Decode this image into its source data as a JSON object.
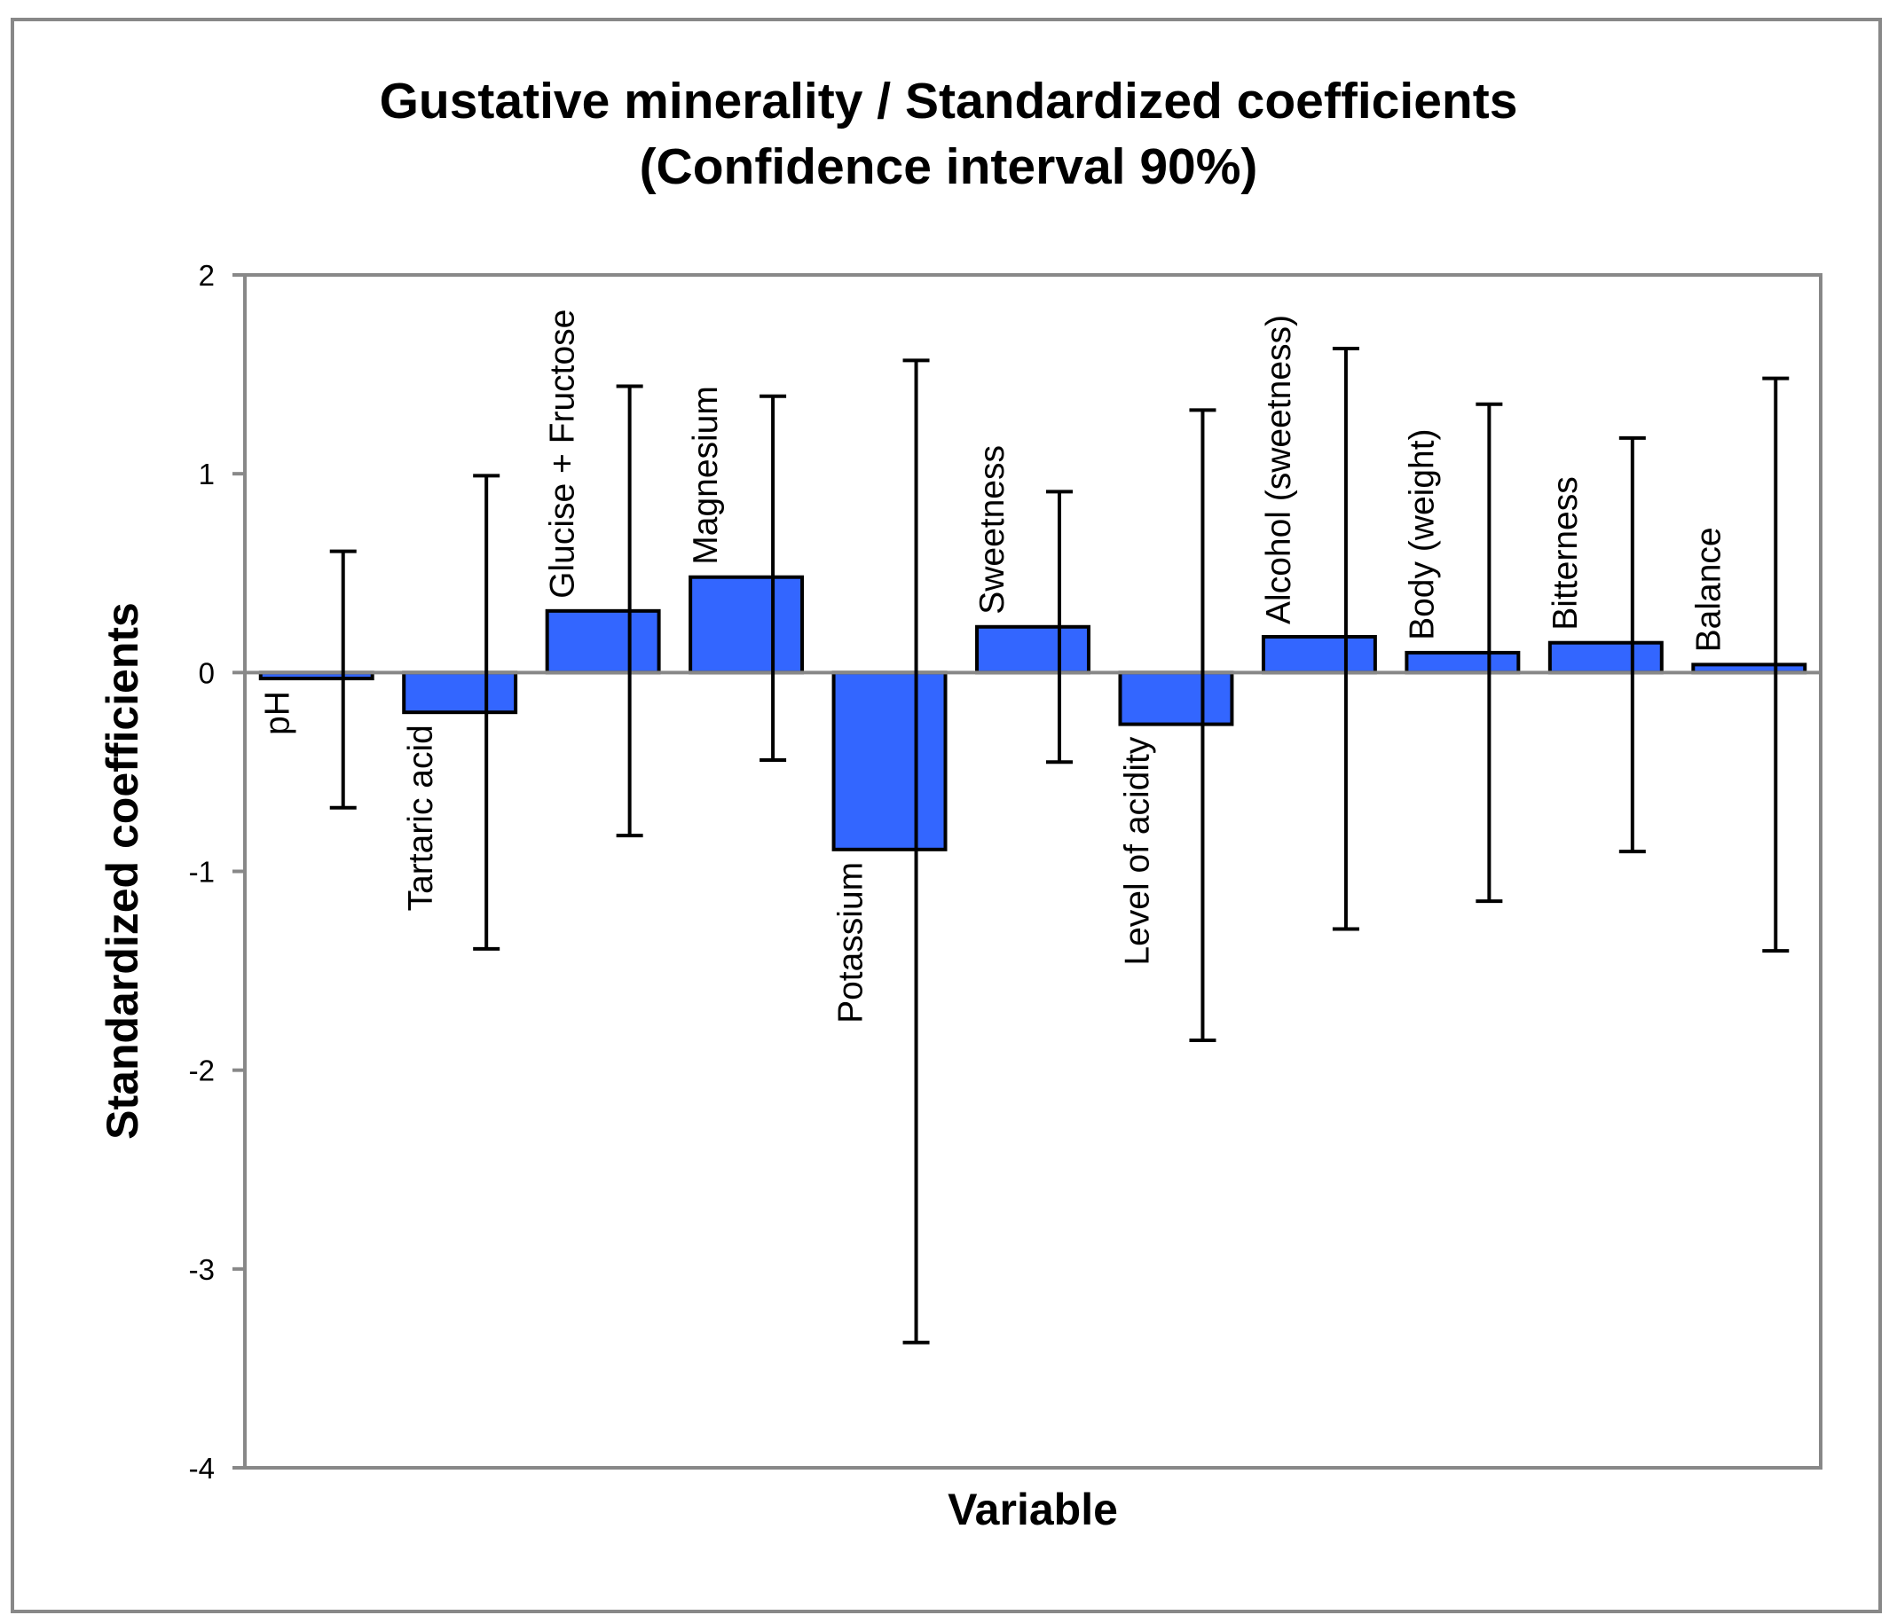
{
  "colors": {
    "bar_fill": "#3366ff",
    "bar_stroke": "#000000",
    "axis": "#888888",
    "frame": "#888888",
    "error_bar": "#000000"
  },
  "chart_data": {
    "type": "bar",
    "title_lines": [
      "Gustative minerality / Standardized coefficients",
      "(Confidence interval 90%)"
    ],
    "xlabel": "Variable",
    "ylabel": "Standardized coefficients",
    "ylim": [
      -4,
      2
    ],
    "yticks": [
      2,
      1,
      0,
      -1,
      -2,
      -3,
      -4
    ],
    "ytick_labels": [
      "2",
      "1",
      "0",
      "-1",
      "-2",
      "-3",
      "-4"
    ],
    "grid": false,
    "legend": "none",
    "categories": [
      "pH",
      "Tartaric acid",
      "Glucise + Fructose",
      "Magnesium",
      "Potassium",
      "Sweetness",
      "Level of acidity",
      "Alcohol (sweetness)",
      "Body (weight)",
      "Bitterness",
      "Balance"
    ],
    "values": [
      -0.03,
      -0.2,
      0.31,
      0.48,
      -0.89,
      0.23,
      -0.26,
      0.18,
      0.1,
      0.15,
      0.04
    ],
    "error_low": [
      -0.68,
      -1.39,
      -0.82,
      -0.44,
      -3.37,
      -0.45,
      -1.85,
      -1.29,
      -1.15,
      -0.9,
      -1.4
    ],
    "error_high": [
      0.61,
      0.99,
      1.44,
      1.39,
      1.57,
      0.91,
      1.32,
      1.63,
      1.35,
      1.18,
      1.48
    ]
  }
}
